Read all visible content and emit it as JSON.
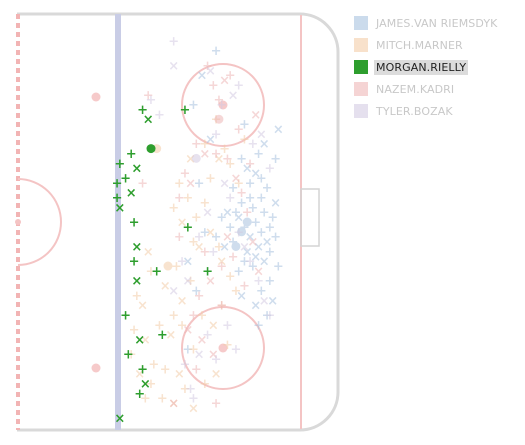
{
  "chart_data": {
    "type": "scatter",
    "title": "",
    "xlabel": "",
    "ylabel": "",
    "xlim": [
      0,
      100
    ],
    "ylim": [
      -42.5,
      42.5
    ],
    "grid": false,
    "legend_position": "top-right",
    "active_series": "MORGAN.RIELLY",
    "series": [
      {
        "name": "JAMES.VAN RIEMSDYK",
        "color": "#a9c3df",
        "goals": [
          [
            79,
            -2
          ],
          [
            77,
            -5
          ],
          [
            81,
            0
          ]
        ],
        "shots": [
          [
            80,
            -1
          ],
          [
            82,
            -3
          ],
          [
            84,
            0
          ],
          [
            86,
            -2
          ],
          [
            78,
            1
          ],
          [
            76,
            -4
          ],
          [
            83,
            3
          ],
          [
            85,
            -5
          ],
          [
            87,
            2
          ],
          [
            89,
            -1
          ],
          [
            81,
            -6
          ],
          [
            79,
            4
          ],
          [
            77,
            2
          ],
          [
            88,
            -4
          ],
          [
            90,
            1
          ],
          [
            82,
            5
          ],
          [
            84,
            -7
          ],
          [
            86,
            5
          ],
          [
            75,
            -1
          ],
          [
            74,
            2
          ],
          [
            80,
            -8
          ],
          [
            83,
            -9
          ],
          [
            87,
            -8
          ],
          [
            89,
            -6
          ],
          [
            91,
            -3
          ],
          [
            91,
            4
          ],
          [
            88,
            7
          ],
          [
            86,
            9
          ],
          [
            84,
            10
          ],
          [
            82,
            8
          ],
          [
            85,
            14
          ],
          [
            87,
            16
          ],
          [
            89,
            -12
          ],
          [
            86,
            -14
          ],
          [
            84,
            -17
          ],
          [
            88,
            -19
          ],
          [
            91,
            13
          ],
          [
            92,
            19
          ],
          [
            76,
            7
          ],
          [
            78,
            -10
          ],
          [
            73,
            -5
          ],
          [
            72,
            1
          ],
          [
            70,
            -3
          ],
          [
            81,
            11
          ],
          [
            79,
            13
          ],
          [
            92,
            -9
          ],
          [
            90,
            -16
          ],
          [
            85,
            -21
          ],
          [
            70,
            35
          ],
          [
            65,
            30
          ],
          [
            62,
            24
          ],
          [
            60,
            -26
          ],
          [
            60,
            -8
          ],
          [
            63,
            -14
          ],
          [
            67,
            -10
          ],
          [
            68,
            17
          ],
          [
            66,
            -2
          ],
          [
            64,
            8
          ],
          [
            79,
            -15
          ],
          [
            80,
            20
          ]
        ]
      },
      {
        "name": "MITCH.MARNER",
        "color": "#f3cda8",
        "goals": [
          [
            49,
            15
          ],
          [
            53,
            -9
          ]
        ],
        "shots": [
          [
            47,
            -10
          ],
          [
            52,
            -13
          ],
          [
            56,
            -9
          ],
          [
            61,
            -12
          ],
          [
            64,
            -5
          ],
          [
            66,
            4
          ],
          [
            68,
            9
          ],
          [
            71,
            13
          ],
          [
            73,
            15
          ],
          [
            75,
            12
          ],
          [
            58,
            -16
          ],
          [
            55,
            -19
          ],
          [
            50,
            -21
          ],
          [
            45,
            -24
          ],
          [
            41,
            -22
          ],
          [
            40,
            -27
          ],
          [
            43,
            -31
          ],
          [
            47,
            -33
          ],
          [
            52,
            -30
          ],
          [
            57,
            -31
          ],
          [
            62,
            -26
          ],
          [
            65,
            -19
          ],
          [
            69,
            -21
          ],
          [
            72,
            -17
          ],
          [
            74,
            -25
          ],
          [
            70,
            -31
          ],
          [
            66,
            -33
          ],
          [
            59,
            -34
          ],
          [
            55,
            -37
          ],
          [
            51,
            -36
          ],
          [
            48,
            -29
          ],
          [
            44,
            -17
          ],
          [
            60,
            5
          ],
          [
            63,
            1
          ],
          [
            58,
            0
          ],
          [
            55,
            3
          ],
          [
            57,
            8
          ],
          [
            61,
            13
          ],
          [
            66,
            16
          ],
          [
            70,
            21
          ],
          [
            72,
            -8
          ],
          [
            75,
            -11
          ],
          [
            77,
            -14
          ],
          [
            68,
            -2
          ],
          [
            71,
            -5
          ],
          [
            62,
            -4
          ],
          [
            46,
            -6
          ],
          [
            42,
            -15
          ],
          [
            58,
            -21
          ],
          [
            54,
            -23
          ],
          [
            78,
            8
          ],
          [
            80,
            17
          ],
          [
            62,
            -38
          ],
          [
            45,
            -36
          ]
        ]
      },
      {
        "name": "MORGAN.RIELLY",
        "color": "#2e9e2e",
        "goals": [
          [
            47,
            15
          ]
        ],
        "shots": [
          [
            44,
            23
          ],
          [
            46,
            21
          ],
          [
            59,
            23
          ],
          [
            40,
            14
          ],
          [
            42,
            11
          ],
          [
            36,
            12
          ],
          [
            38,
            9
          ],
          [
            40,
            6
          ],
          [
            35,
            8
          ],
          [
            35,
            5
          ],
          [
            36,
            3
          ],
          [
            41,
            0
          ],
          [
            60,
            -1
          ],
          [
            42,
            -5
          ],
          [
            41,
            -8
          ],
          [
            49,
            -10
          ],
          [
            42,
            -12
          ],
          [
            38,
            -19
          ],
          [
            51,
            -23
          ],
          [
            43,
            -24
          ],
          [
            39,
            -27
          ],
          [
            44,
            -30
          ],
          [
            45,
            -33
          ],
          [
            43,
            -35
          ],
          [
            67,
            -10
          ],
          [
            36,
            -40
          ]
        ]
      },
      {
        "name": "NAZEM.KADRI",
        "color": "#eeb7b7",
        "goals": [
          [
            71,
            21
          ]
        ],
        "shots": [
          [
            63,
            16
          ],
          [
            66,
            14
          ],
          [
            70,
            14
          ],
          [
            74,
            13
          ],
          [
            77,
            9
          ],
          [
            79,
            6
          ],
          [
            81,
            2
          ],
          [
            83,
            -4
          ],
          [
            76,
            -7
          ],
          [
            72,
            -9
          ],
          [
            68,
            -12
          ],
          [
            64,
            -15
          ],
          [
            62,
            -19
          ],
          [
            60,
            -22
          ],
          [
            71,
            25
          ],
          [
            69,
            28
          ],
          [
            73,
            29
          ],
          [
            75,
            30
          ],
          [
            67,
            32
          ],
          [
            65,
            -24
          ],
          [
            59,
            10
          ],
          [
            57,
            5
          ],
          [
            61,
            8
          ],
          [
            78,
            19
          ],
          [
            82,
            12
          ],
          [
            85,
            -10
          ],
          [
            80,
            -13
          ],
          [
            72,
            -17
          ],
          [
            69,
            -27
          ],
          [
            63,
            -30
          ],
          [
            57,
            -3
          ],
          [
            74,
            -3
          ],
          [
            66,
            -6
          ],
          [
            46,
            26
          ],
          [
            55,
            -37
          ],
          [
            70,
            -37
          ],
          [
            44,
            8
          ],
          [
            84,
            22
          ]
        ]
      },
      {
        "name": "TYLER.BOZAK",
        "color": "#d4cbe2",
        "goals": [
          [
            63,
            13
          ]
        ],
        "shots": [
          [
            55,
            37
          ],
          [
            55,
            32
          ],
          [
            47,
            25
          ],
          [
            50,
            22
          ],
          [
            68,
            31
          ],
          [
            78,
            28
          ],
          [
            70,
            18
          ],
          [
            73,
            8
          ],
          [
            75,
            5
          ],
          [
            78,
            -2
          ],
          [
            80,
            -5
          ],
          [
            82,
            -8
          ],
          [
            85,
            -12
          ],
          [
            87,
            -16
          ],
          [
            89,
            -19
          ],
          [
            67,
            -23
          ],
          [
            64,
            -27
          ],
          [
            70,
            -28
          ],
          [
            61,
            -34
          ],
          [
            55,
            -14
          ],
          [
            58,
            -8
          ],
          [
            64,
            -3
          ],
          [
            67,
            2
          ],
          [
            69,
            -6
          ],
          [
            83,
            16
          ],
          [
            86,
            18
          ],
          [
            89,
            11
          ],
          [
            72,
            24
          ],
          [
            76,
            26
          ],
          [
            62,
            -36
          ],
          [
            74,
            -21
          ],
          [
            60,
            -12
          ],
          [
            77,
            -26
          ],
          [
            59,
            -29
          ]
        ]
      }
    ]
  }
}
